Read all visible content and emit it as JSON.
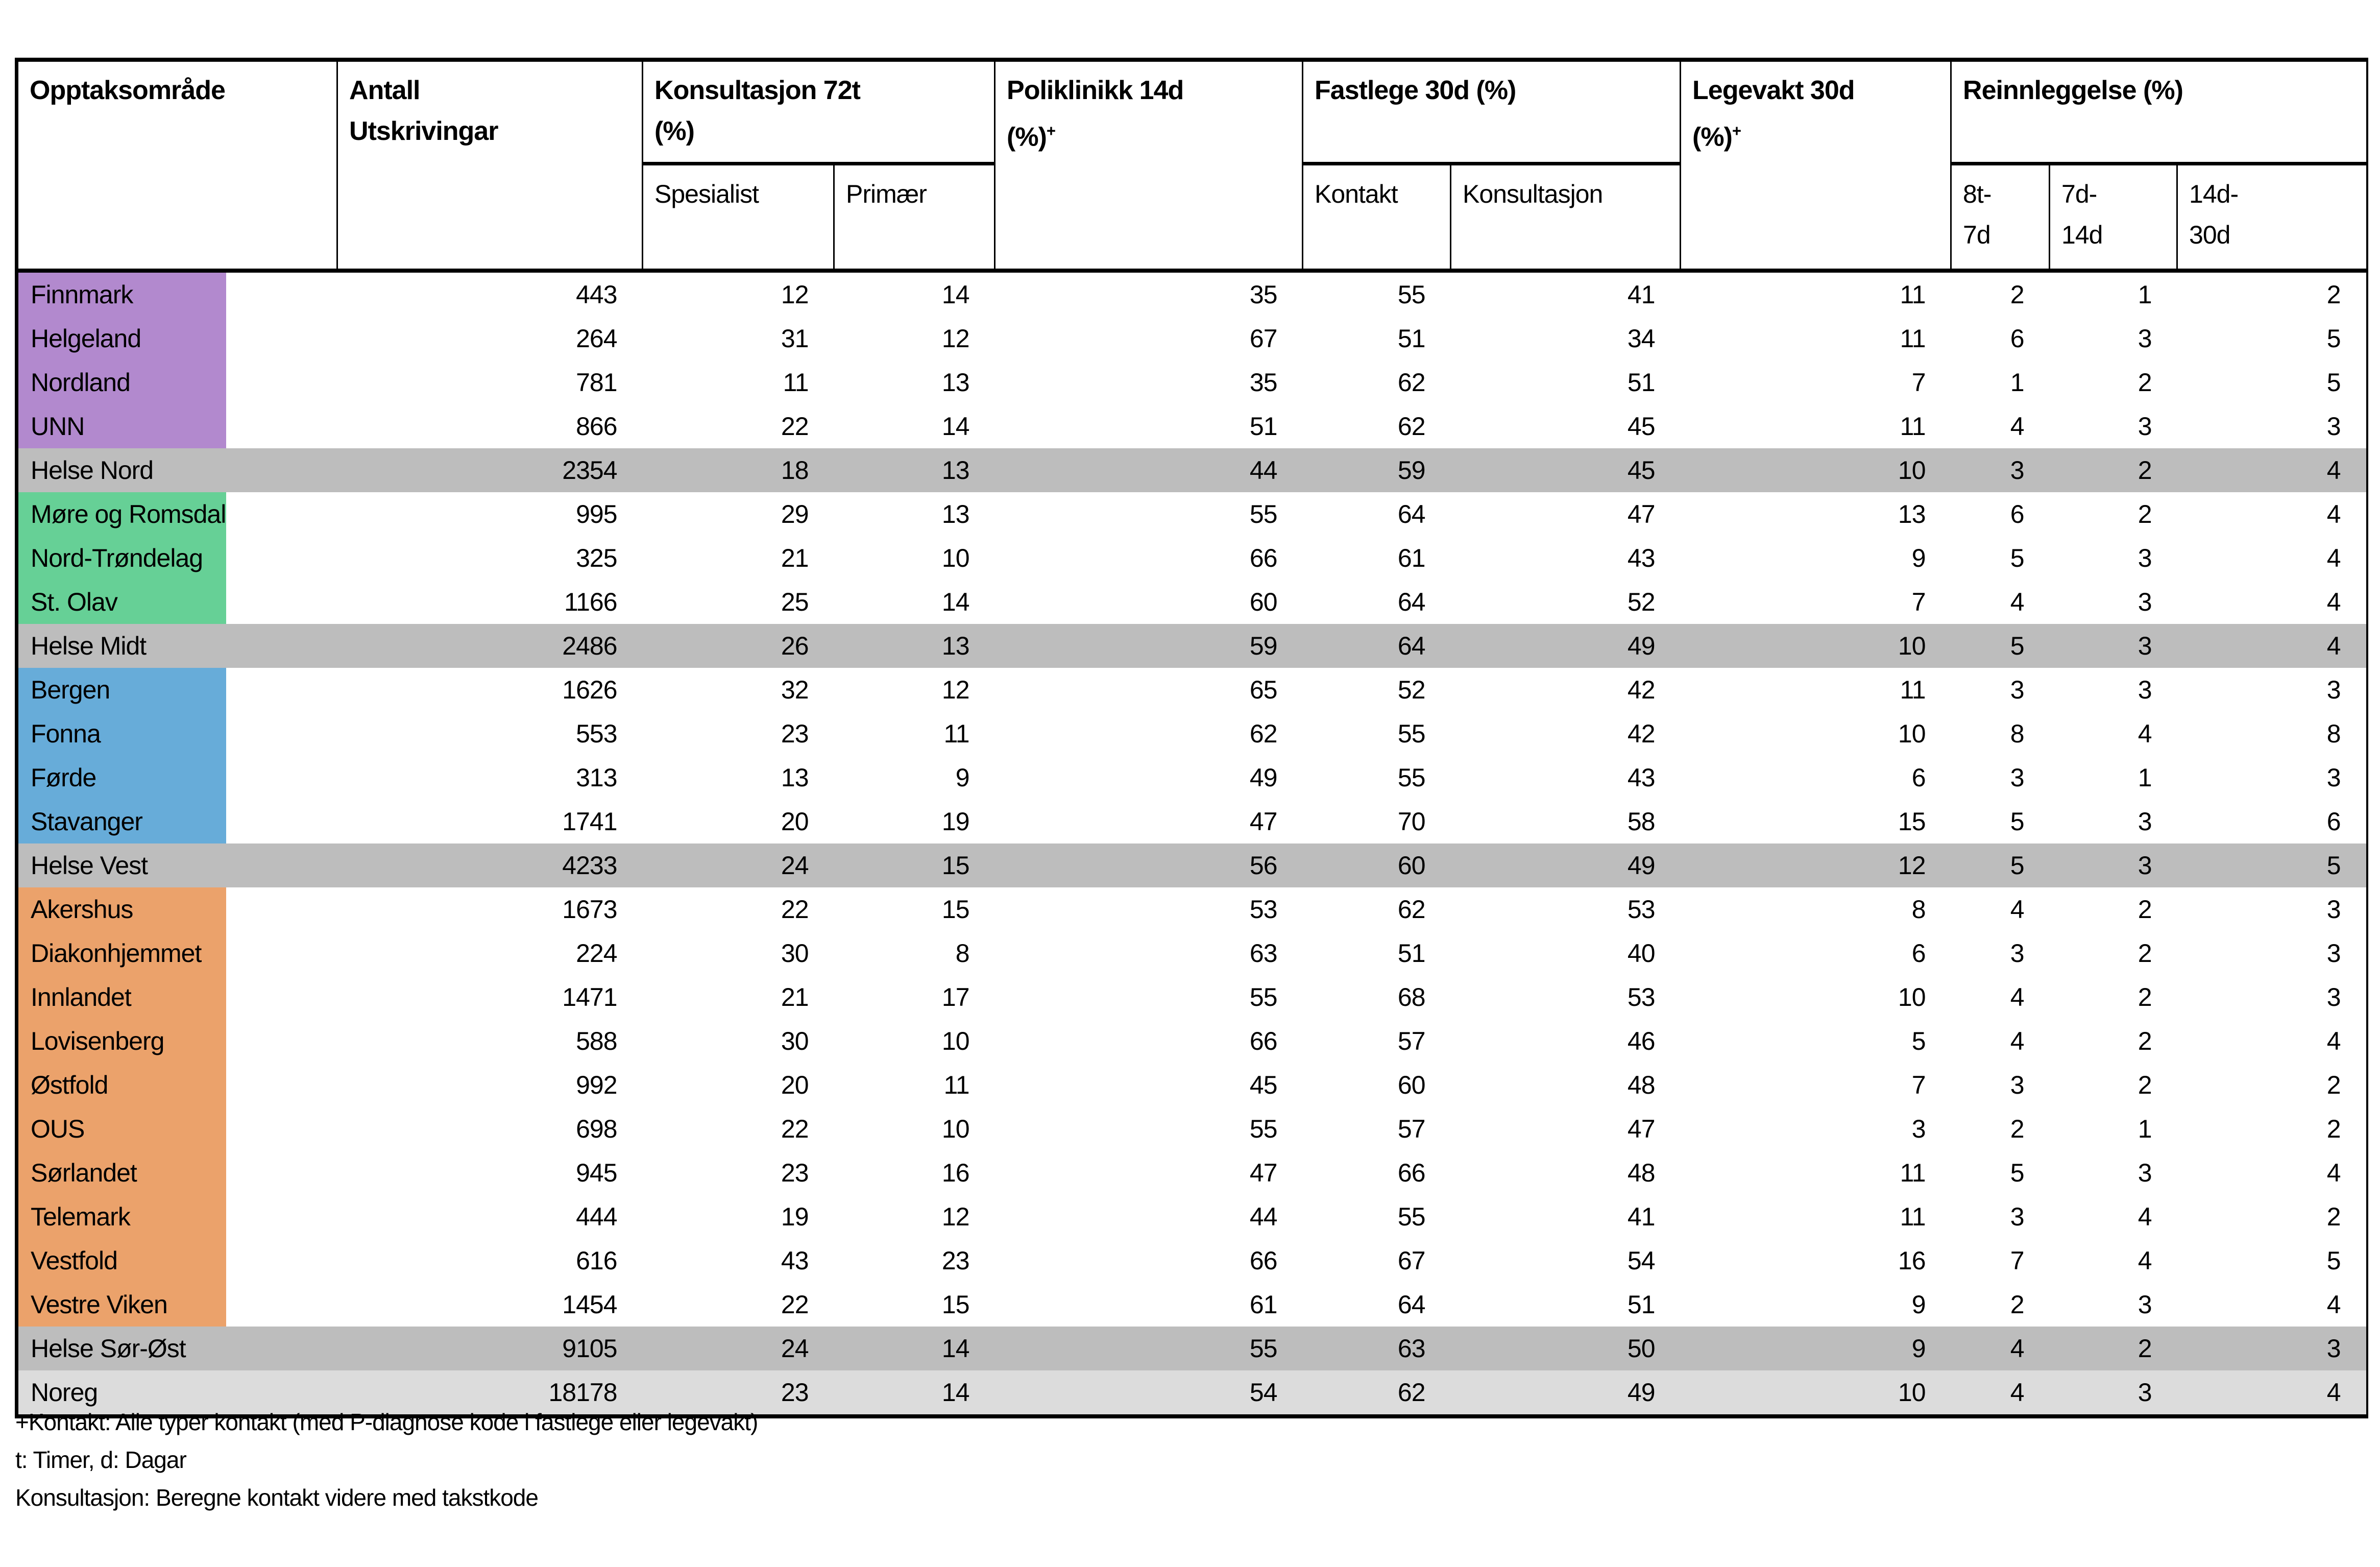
{
  "table": {
    "headers": {
      "region": "Opptaksområde",
      "antall_lines": [
        "Antall",
        "Utskrivingar"
      ],
      "konsultasjon_line1": "Konsultasjon 72t",
      "konsultasjon_line2": "(%)",
      "spesialist": "Spesialist",
      "primaer": "Primær",
      "poliklinikk_line1": "Poliklinikk 14d",
      "poliklinikk_line2": "(%)",
      "poliklinikk_sup": "+",
      "fastlege": "Fastlege 30d (%)",
      "kontakt": "Kontakt",
      "konsultasjon_sub": "Konsultasjon",
      "legevakt_line1": "Legevakt 30d",
      "legevakt_line2": "(%)",
      "legevakt_sup": "+",
      "reinnleggelse": "Reinnleggelse (%)",
      "reinn_8t_7d": [
        "8t-",
        "7d"
      ],
      "reinn_7d_14d": [
        "7d-",
        "14d"
      ],
      "reinn_14d_30d": [
        "14d-",
        "30d"
      ]
    },
    "row_colors": {
      "north": "#B289CE",
      "midt": "#66D096",
      "vest": "#67ACD9",
      "sorost": "#EBA26B",
      "summary": "#BDBDBD",
      "national": "#DCDCDC",
      "plain": "#FFFFFF"
    },
    "rows": [
      {
        "name": "Finnmark",
        "group": "north",
        "kind": "region",
        "values": [
          443,
          12,
          14,
          35,
          55,
          41,
          11,
          2,
          1,
          2
        ]
      },
      {
        "name": "Helgeland",
        "group": "north",
        "kind": "region",
        "values": [
          264,
          31,
          12,
          67,
          51,
          34,
          11,
          6,
          3,
          5
        ]
      },
      {
        "name": "Nordland",
        "group": "north",
        "kind": "region",
        "values": [
          781,
          11,
          13,
          35,
          62,
          51,
          7,
          1,
          2,
          5
        ]
      },
      {
        "name": "UNN",
        "group": "north",
        "kind": "region",
        "values": [
          866,
          22,
          14,
          51,
          62,
          45,
          11,
          4,
          3,
          3
        ]
      },
      {
        "name": "Helse Nord",
        "group": "summary",
        "kind": "summary",
        "values": [
          2354,
          18,
          13,
          44,
          59,
          45,
          10,
          3,
          2,
          4
        ]
      },
      {
        "name": "Møre og Romsdal",
        "group": "midt",
        "kind": "region",
        "values": [
          995,
          29,
          13,
          55,
          64,
          47,
          13,
          6,
          2,
          4
        ]
      },
      {
        "name": "Nord-Trøndelag",
        "group": "midt",
        "kind": "region",
        "values": [
          325,
          21,
          10,
          66,
          61,
          43,
          9,
          5,
          3,
          4
        ]
      },
      {
        "name": "St. Olav",
        "group": "midt",
        "kind": "region",
        "values": [
          1166,
          25,
          14,
          60,
          64,
          52,
          7,
          4,
          3,
          4
        ]
      },
      {
        "name": "Helse Midt",
        "group": "summary",
        "kind": "summary",
        "values": [
          2486,
          26,
          13,
          59,
          64,
          49,
          10,
          5,
          3,
          4
        ]
      },
      {
        "name": "Bergen",
        "group": "vest",
        "kind": "region",
        "values": [
          1626,
          32,
          12,
          65,
          52,
          42,
          11,
          3,
          3,
          3
        ]
      },
      {
        "name": "Fonna",
        "group": "vest",
        "kind": "region",
        "values": [
          553,
          23,
          11,
          62,
          55,
          42,
          10,
          8,
          4,
          8
        ]
      },
      {
        "name": "Førde",
        "group": "vest",
        "kind": "region",
        "values": [
          313,
          13,
          9,
          49,
          55,
          43,
          6,
          3,
          1,
          3
        ]
      },
      {
        "name": "Stavanger",
        "group": "vest",
        "kind": "region",
        "values": [
          1741,
          20,
          19,
          47,
          70,
          58,
          15,
          5,
          3,
          6
        ]
      },
      {
        "name": "Helse Vest",
        "group": "summary",
        "kind": "summary",
        "values": [
          4233,
          24,
          15,
          56,
          60,
          49,
          12,
          5,
          3,
          5
        ]
      },
      {
        "name": "Akershus",
        "group": "sorost",
        "kind": "region",
        "values": [
          1673,
          22,
          15,
          53,
          62,
          53,
          8,
          4,
          2,
          3
        ]
      },
      {
        "name": "Diakonhjemmet",
        "group": "sorost",
        "kind": "region",
        "values": [
          224,
          30,
          8,
          63,
          51,
          40,
          6,
          3,
          2,
          3
        ]
      },
      {
        "name": "Innlandet",
        "group": "sorost",
        "kind": "region",
        "values": [
          1471,
          21,
          17,
          55,
          68,
          53,
          10,
          4,
          2,
          3
        ]
      },
      {
        "name": "Lovisenberg",
        "group": "sorost",
        "kind": "region",
        "values": [
          588,
          30,
          10,
          66,
          57,
          46,
          5,
          4,
          2,
          4
        ]
      },
      {
        "name": "Østfold",
        "group": "sorost",
        "kind": "region",
        "values": [
          992,
          20,
          11,
          45,
          60,
          48,
          7,
          3,
          2,
          2
        ]
      },
      {
        "name": "OUS",
        "group": "sorost",
        "kind": "region",
        "values": [
          698,
          22,
          10,
          55,
          57,
          47,
          3,
          2,
          1,
          2
        ]
      },
      {
        "name": "Sørlandet",
        "group": "sorost",
        "kind": "region",
        "values": [
          945,
          23,
          16,
          47,
          66,
          48,
          11,
          5,
          3,
          4
        ]
      },
      {
        "name": "Telemark",
        "group": "sorost",
        "kind": "region",
        "values": [
          444,
          19,
          12,
          44,
          55,
          41,
          11,
          3,
          4,
          2
        ]
      },
      {
        "name": "Vestfold",
        "group": "sorost",
        "kind": "region",
        "values": [
          616,
          43,
          23,
          66,
          67,
          54,
          16,
          7,
          4,
          5
        ]
      },
      {
        "name": "Vestre Viken",
        "group": "sorost",
        "kind": "region",
        "values": [
          1454,
          22,
          15,
          61,
          64,
          51,
          9,
          2,
          3,
          4
        ]
      },
      {
        "name": "Helse Sør-Øst",
        "group": "summary",
        "kind": "summary",
        "values": [
          9105,
          24,
          14,
          55,
          63,
          50,
          9,
          4,
          2,
          3
        ]
      },
      {
        "name": "Noreg",
        "group": "national",
        "kind": "national",
        "values": [
          18178,
          23,
          14,
          54,
          62,
          49,
          10,
          4,
          3,
          4
        ]
      }
    ]
  },
  "footnotes": [
    "+Kontakt: Alle typer kontakt (med P-diagnose kode i fastlege eller legevakt)",
    "t: Timer, d: Dagar",
    "Konsultasjon: Beregne kontakt videre med takstkode"
  ]
}
